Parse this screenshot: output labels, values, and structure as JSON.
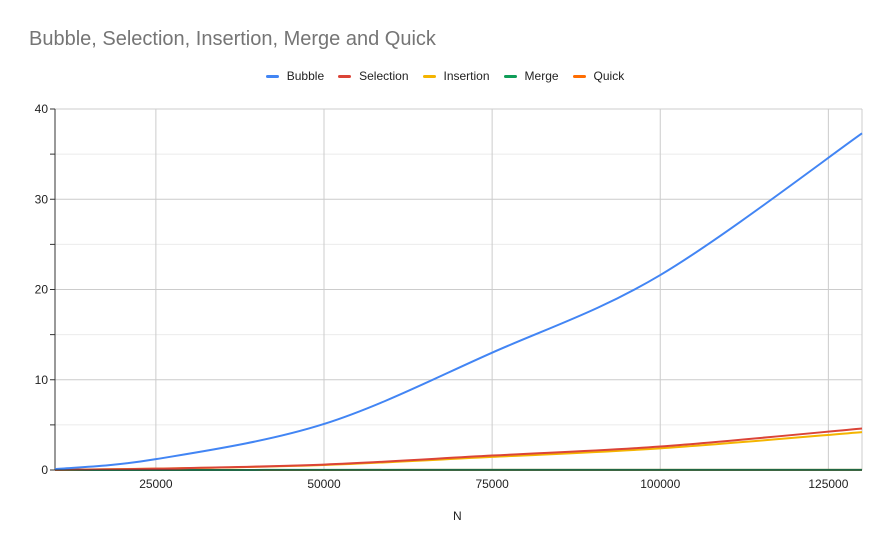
{
  "chart_data": {
    "type": "line",
    "title": "Bubble, Selection, Insertion, Merge and Quick",
    "xlabel": "N",
    "ylabel": "",
    "xlim": [
      10000,
      130000
    ],
    "ylim": [
      0,
      40
    ],
    "x_ticks": [
      25000,
      50000,
      75000,
      100000,
      125000
    ],
    "y_ticks": [
      0,
      10,
      20,
      30,
      40
    ],
    "grid": true,
    "legend_position": "top",
    "x": [
      10000,
      25000,
      50000,
      75000,
      100000,
      130000
    ],
    "series": [
      {
        "name": "Bubble",
        "color": "#4285f4",
        "values": [
          0.1,
          1.2,
          5.1,
          13.0,
          21.6,
          37.3
        ]
      },
      {
        "name": "Selection",
        "color": "#db4437",
        "values": [
          0.02,
          0.15,
          0.6,
          1.6,
          2.6,
          4.6
        ]
      },
      {
        "name": "Insertion",
        "color": "#f4b400",
        "values": [
          0.02,
          0.15,
          0.55,
          1.45,
          2.4,
          4.2
        ]
      },
      {
        "name": "Merge",
        "color": "#0f9d58",
        "values": [
          0.0,
          0.0,
          0.01,
          0.01,
          0.02,
          0.02
        ]
      },
      {
        "name": "Quick",
        "color": "#ff6d01",
        "values": [
          0.0,
          0.0,
          0.005,
          0.01,
          0.01,
          0.015
        ]
      }
    ]
  }
}
